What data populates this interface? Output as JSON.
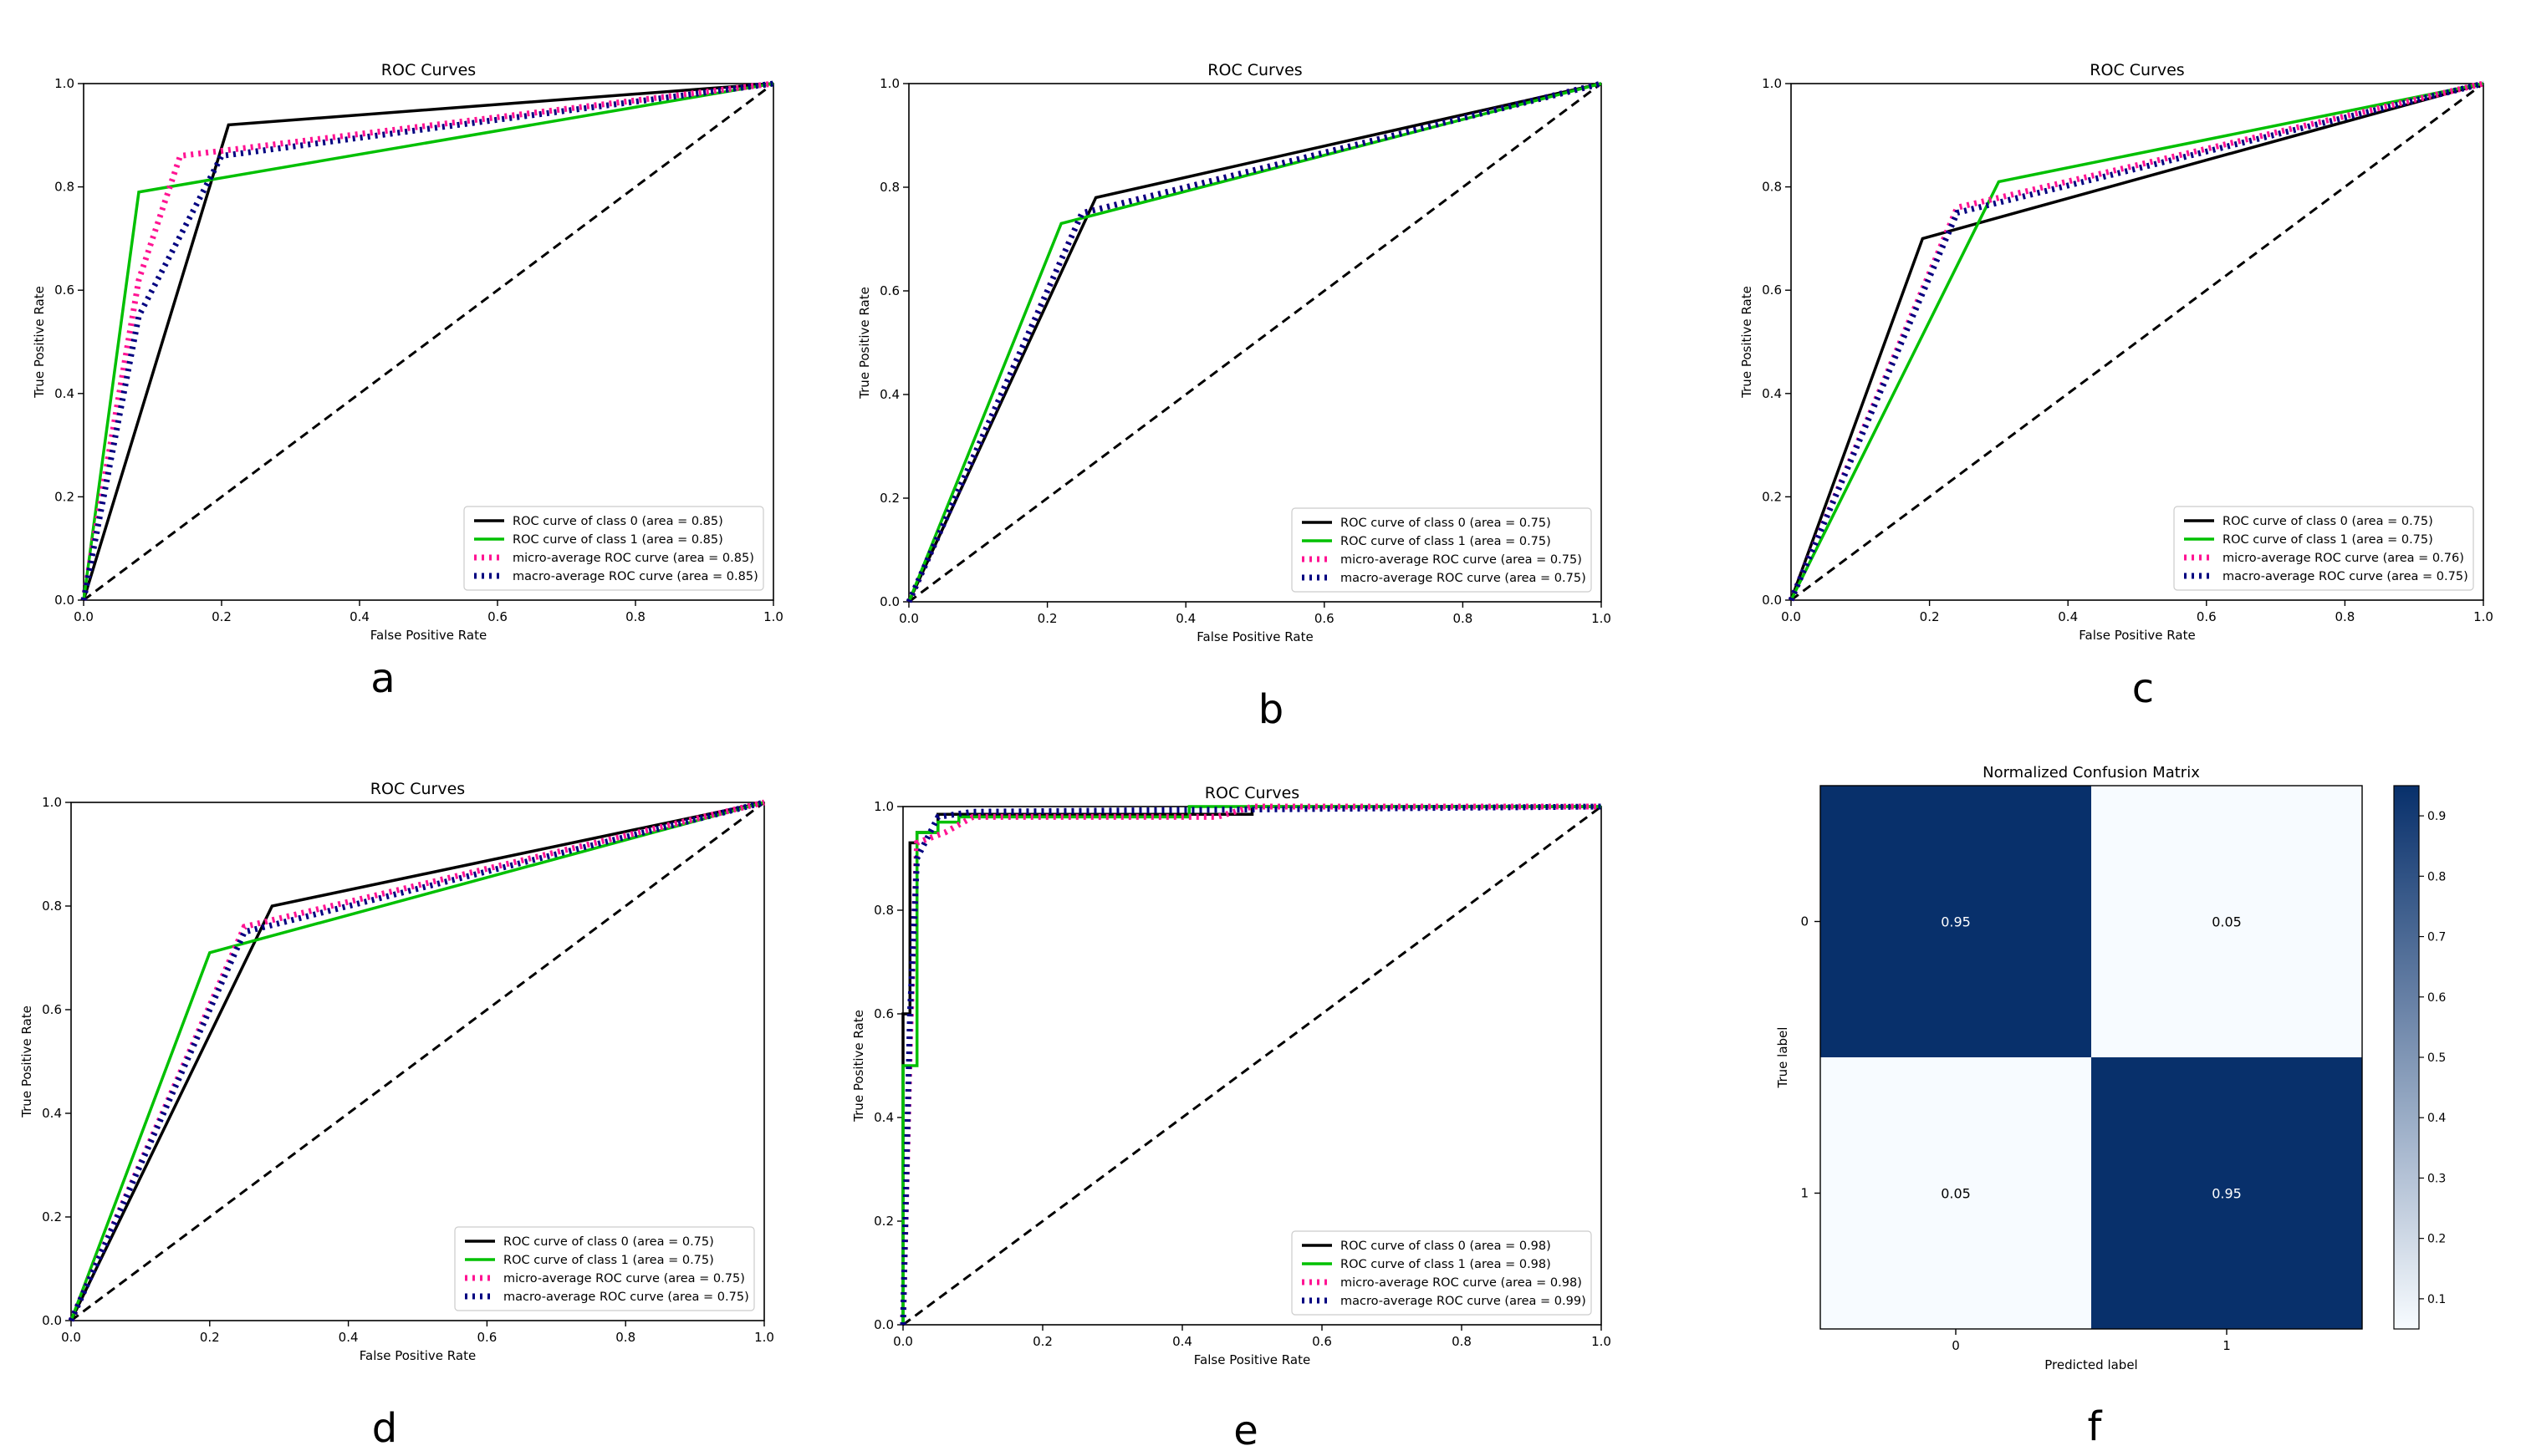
{
  "chart_data": [
    {
      "type": "line",
      "panel_label": "a",
      "title": "ROC Curves",
      "xlabel": "False Positive Rate",
      "ylabel": "True Positive Rate",
      "xlim": [
        0,
        1
      ],
      "ylim": [
        0,
        1
      ],
      "ticks": [
        "0.0",
        "0.2",
        "0.4",
        "0.6",
        "0.8",
        "1.0"
      ],
      "legend_position": "lower-right",
      "series": [
        {
          "name": "ROC curve of class 0 (area = 0.85)",
          "color": "#000000",
          "style": "solid",
          "x": [
            0,
            0.21,
            1
          ],
          "y": [
            0,
            0.92,
            1
          ]
        },
        {
          "name": "ROC curve of class 1 (area = 0.85)",
          "color": "#00c000",
          "style": "solid",
          "x": [
            0,
            0.08,
            1
          ],
          "y": [
            0,
            0.79,
            1
          ]
        },
        {
          "name": "micro-average ROC curve (area = 0.85)",
          "color": "#ff1493",
          "style": "dotted",
          "x": [
            0,
            0.08,
            0.14,
            1
          ],
          "y": [
            0,
            0.62,
            0.86,
            1
          ]
        },
        {
          "name": "macro-average ROC curve (area = 0.85)",
          "color": "#000080",
          "style": "dotted",
          "x": [
            0,
            0.08,
            0.2,
            1
          ],
          "y": [
            0,
            0.55,
            0.86,
            1
          ]
        },
        {
          "name": "",
          "color": "#000000",
          "style": "dashed",
          "x": [
            0,
            1
          ],
          "y": [
            0,
            1
          ]
        }
      ]
    },
    {
      "type": "line",
      "panel_label": "b",
      "title": "ROC Curves",
      "xlabel": "False Positive Rate",
      "ylabel": "True Positive Rate",
      "xlim": [
        0,
        1
      ],
      "ylim": [
        0,
        1
      ],
      "ticks": [
        "0.0",
        "0.2",
        "0.4",
        "0.6",
        "0.8",
        "1.0"
      ],
      "legend_position": "lower-right",
      "series": [
        {
          "name": "ROC curve of class 0 (area = 0.75)",
          "color": "#000000",
          "style": "solid",
          "x": [
            0,
            0.27,
            1
          ],
          "y": [
            0,
            0.78,
            1
          ]
        },
        {
          "name": "ROC curve of class 1 (area = 0.75)",
          "color": "#00c000",
          "style": "solid",
          "x": [
            0,
            0.22,
            1
          ],
          "y": [
            0,
            0.73,
            1
          ]
        },
        {
          "name": "micro-average ROC curve (area = 0.75)",
          "color": "#ff1493",
          "style": "dotted",
          "x": [
            0,
            0.25,
            1
          ],
          "y": [
            0,
            0.75,
            1
          ]
        },
        {
          "name": "macro-average ROC curve (area = 0.75)",
          "color": "#000080",
          "style": "dotted",
          "x": [
            0,
            0.25,
            1
          ],
          "y": [
            0,
            0.75,
            1
          ]
        },
        {
          "name": "",
          "color": "#000000",
          "style": "dashed",
          "x": [
            0,
            1
          ],
          "y": [
            0,
            1
          ]
        }
      ]
    },
    {
      "type": "line",
      "panel_label": "c",
      "title": "ROC Curves",
      "xlabel": "False Positive Rate",
      "ylabel": "True Positive Rate",
      "xlim": [
        0,
        1
      ],
      "ylim": [
        0,
        1
      ],
      "ticks": [
        "0.0",
        "0.2",
        "0.4",
        "0.6",
        "0.8",
        "1.0"
      ],
      "legend_position": "lower-right",
      "series": [
        {
          "name": "ROC curve of class 0 (area = 0.75)",
          "color": "#000000",
          "style": "solid",
          "x": [
            0,
            0.19,
            1
          ],
          "y": [
            0,
            0.7,
            1
          ]
        },
        {
          "name": "ROC curve of class 1 (area = 0.75)",
          "color": "#00c000",
          "style": "solid",
          "x": [
            0,
            0.3,
            1
          ],
          "y": [
            0,
            0.81,
            1
          ]
        },
        {
          "name": "micro-average ROC curve (area = 0.76)",
          "color": "#ff1493",
          "style": "dotted",
          "x": [
            0,
            0.24,
            1
          ],
          "y": [
            0,
            0.76,
            1
          ]
        },
        {
          "name": "macro-average ROC curve (area = 0.75)",
          "color": "#000080",
          "style": "dotted",
          "x": [
            0,
            0.24,
            1
          ],
          "y": [
            0,
            0.75,
            1
          ]
        },
        {
          "name": "",
          "color": "#000000",
          "style": "dashed",
          "x": [
            0,
            1
          ],
          "y": [
            0,
            1
          ]
        }
      ]
    },
    {
      "type": "line",
      "panel_label": "d",
      "title": "ROC Curves",
      "xlabel": "False Positive Rate",
      "ylabel": "True Positive Rate",
      "xlim": [
        0,
        1
      ],
      "ylim": [
        0,
        1
      ],
      "ticks": [
        "0.0",
        "0.2",
        "0.4",
        "0.6",
        "0.8",
        "1.0"
      ],
      "legend_position": "lower-right",
      "series": [
        {
          "name": "ROC curve of class 0 (area = 0.75)",
          "color": "#000000",
          "style": "solid",
          "x": [
            0,
            0.29,
            1
          ],
          "y": [
            0,
            0.8,
            1
          ]
        },
        {
          "name": "ROC curve of class 1 (area = 0.75)",
          "color": "#00c000",
          "style": "solid",
          "x": [
            0,
            0.2,
            1
          ],
          "y": [
            0,
            0.71,
            1
          ]
        },
        {
          "name": "micro-average ROC curve (area = 0.75)",
          "color": "#ff1493",
          "style": "dotted",
          "x": [
            0,
            0.25,
            1
          ],
          "y": [
            0,
            0.76,
            1
          ]
        },
        {
          "name": "macro-average ROC curve (area = 0.75)",
          "color": "#000080",
          "style": "dotted",
          "x": [
            0,
            0.25,
            1
          ],
          "y": [
            0,
            0.75,
            1
          ]
        },
        {
          "name": "",
          "color": "#000000",
          "style": "dashed",
          "x": [
            0,
            1
          ],
          "y": [
            0,
            1
          ]
        }
      ]
    },
    {
      "type": "line",
      "panel_label": "e",
      "title": "ROC Curves",
      "xlabel": "False Positive Rate",
      "ylabel": "True Positive Rate",
      "xlim": [
        0,
        1
      ],
      "ylim": [
        0,
        1
      ],
      "ticks": [
        "0.0",
        "0.2",
        "0.4",
        "0.6",
        "0.8",
        "1.0"
      ],
      "legend_position": "lower-right",
      "series": [
        {
          "name": "ROC curve of class 0 (area = 0.98)",
          "color": "#000000",
          "style": "solid",
          "x": [
            0,
            0,
            0.01,
            0.01,
            0.02,
            0.02,
            0.05,
            0.05,
            0.5,
            0.5,
            1
          ],
          "y": [
            0,
            0.6,
            0.6,
            0.93,
            0.93,
            0.95,
            0.95,
            0.985,
            0.985,
            1,
            1
          ]
        },
        {
          "name": "ROC curve of class 1 (area = 0.98)",
          "color": "#00c000",
          "style": "solid",
          "x": [
            0,
            0,
            0.02,
            0.02,
            0.05,
            0.05,
            0.08,
            0.08,
            0.41,
            0.41,
            1
          ],
          "y": [
            0,
            0.5,
            0.5,
            0.95,
            0.95,
            0.97,
            0.97,
            0.98,
            0.98,
            1,
            1
          ]
        },
        {
          "name": "micro-average ROC curve (area = 0.98)",
          "color": "#ff1493",
          "style": "dotted",
          "x": [
            0,
            0.01,
            0.02,
            0.06,
            0.1,
            0.45,
            0.5,
            1
          ],
          "y": [
            0,
            0.55,
            0.93,
            0.95,
            0.98,
            0.98,
            1,
            1
          ]
        },
        {
          "name": "macro-average ROC curve (area = 0.99)",
          "color": "#000080",
          "style": "dotted",
          "x": [
            0,
            0.01,
            0.02,
            0.05,
            0.1,
            1
          ],
          "y": [
            0,
            0.6,
            0.9,
            0.98,
            0.99,
            1
          ]
        },
        {
          "name": "",
          "color": "#000000",
          "style": "dashed",
          "x": [
            0,
            1
          ],
          "y": [
            0,
            1
          ]
        }
      ]
    },
    {
      "type": "heatmap",
      "panel_label": "f",
      "title": "Normalized Confusion Matrix",
      "xlabel": "Predicted label",
      "ylabel": "True label",
      "row_labels": [
        "0",
        "1"
      ],
      "col_labels": [
        "0",
        "1"
      ],
      "values": [
        [
          0.95,
          0.05
        ],
        [
          0.05,
          0.95
        ]
      ],
      "cell_labels": [
        [
          "0.95",
          "0.05"
        ],
        [
          "0.05",
          "0.95"
        ]
      ],
      "colormap": "Blues",
      "colors": {
        "low": "#f7fbff",
        "high": "#08306b"
      },
      "colorbar_ticks": [
        "0.1",
        "0.2",
        "0.3",
        "0.4",
        "0.5",
        "0.6",
        "0.7",
        "0.8",
        "0.9"
      ],
      "colorbar_range": [
        0.05,
        0.95
      ]
    }
  ]
}
